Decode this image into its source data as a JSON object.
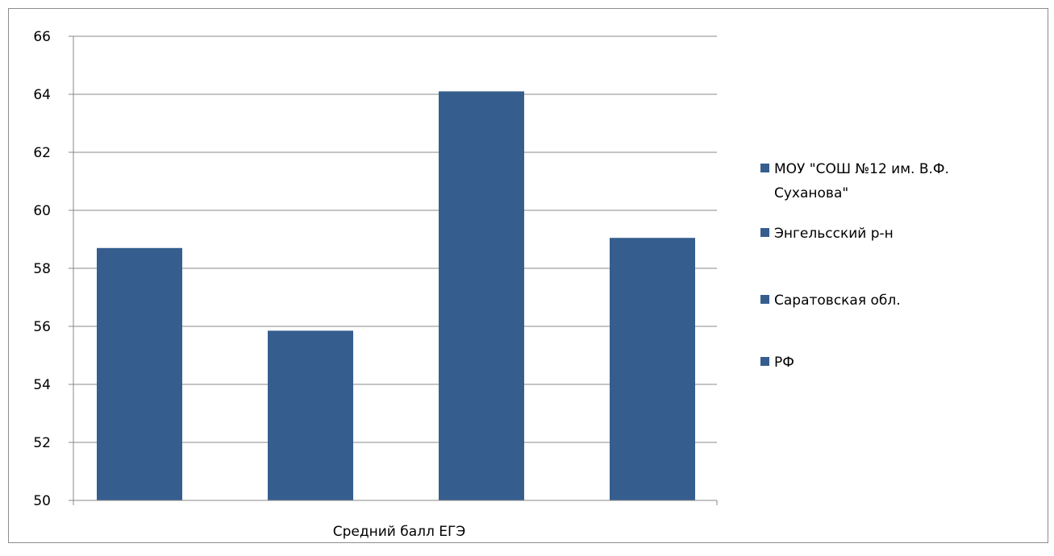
{
  "chart_data": {
    "type": "bar",
    "categories": [
      "Средний  балл ЕГЭ"
    ],
    "xlabel": "",
    "ylabel": "",
    "ylim": [
      50,
      66
    ],
    "y_ticks": [
      "50",
      "52",
      "54",
      "56",
      "58",
      "60",
      "62",
      "64",
      "66"
    ],
    "grid": true,
    "legend_position": "right",
    "bar_color": "#355E8E",
    "series": [
      {
        "name": "МОУ \"СОШ №12 им. В.Ф. Суханова\"",
        "legend_lines": [
          "МОУ \"СОШ №12 им. В.Ф.",
          "Суханова\""
        ],
        "values": [
          58.7
        ]
      },
      {
        "name": "Энгельсский р-н",
        "legend_lines": [
          "Энгельсский р-н"
        ],
        "values": [
          55.85
        ]
      },
      {
        "name": "Саратовская обл.",
        "legend_lines": [
          "Саратовская обл."
        ],
        "values": [
          64.1
        ]
      },
      {
        "name": "РФ",
        "legend_lines": [
          "РФ"
        ],
        "values": [
          59.05
        ]
      }
    ]
  }
}
